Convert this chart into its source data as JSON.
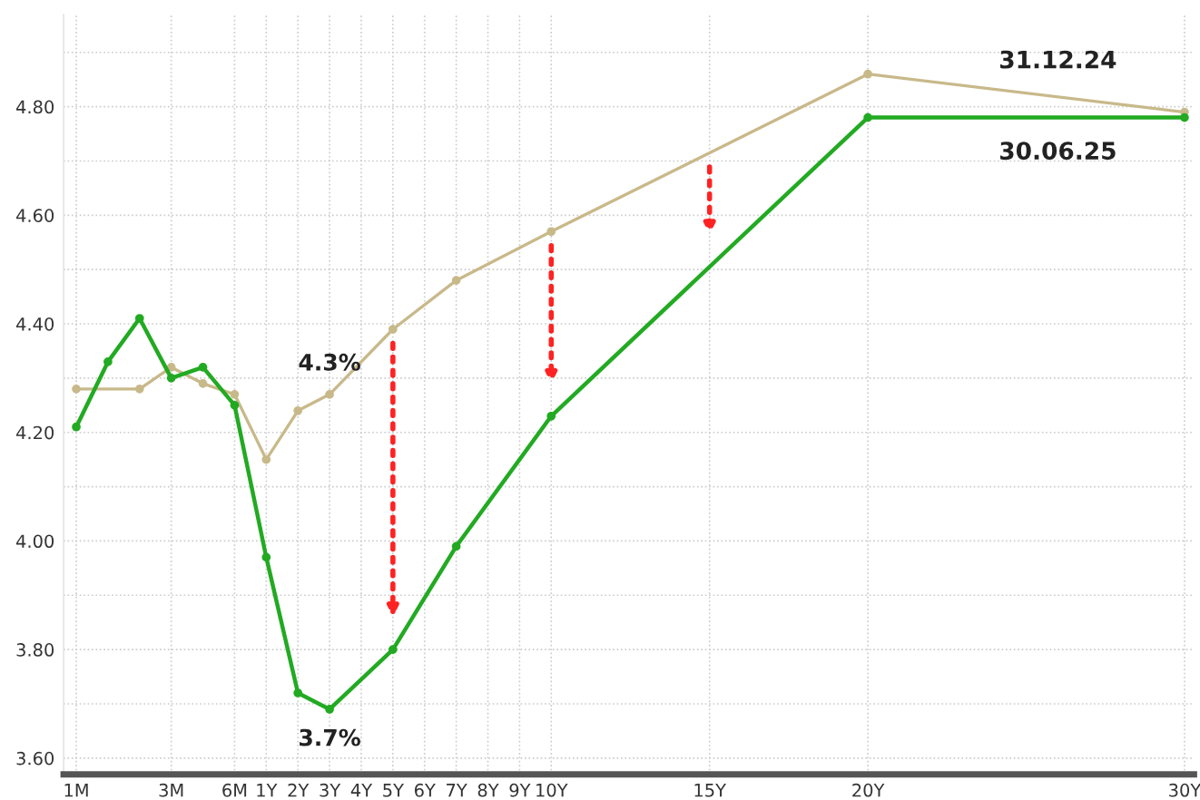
{
  "chart_data": {
    "type": "line",
    "categories": [
      "1M",
      null,
      null,
      "3M",
      null,
      "6M",
      "1Y",
      "2Y",
      "3Y",
      "4Y",
      "5Y",
      "6Y",
      "7Y",
      "8Y",
      "9Y",
      "10Y",
      null,
      null,
      null,
      null,
      "15Y",
      null,
      null,
      null,
      null,
      "20Y",
      null,
      null,
      null,
      null,
      null,
      null,
      null,
      null,
      null,
      "30Y"
    ],
    "ylim": [
      3.57,
      4.97
    ],
    "yticks": [
      {
        "value": 3.6,
        "label": "3.60"
      },
      {
        "value": 3.7,
        "label": null
      },
      {
        "value": 3.8,
        "label": "3.80"
      },
      {
        "value": 3.9,
        "label": null
      },
      {
        "value": 4.0,
        "label": "4.00"
      },
      {
        "value": 4.1,
        "label": null
      },
      {
        "value": 4.2,
        "label": "4.20"
      },
      {
        "value": 4.3,
        "label": null
      },
      {
        "value": 4.4,
        "label": "4.40"
      },
      {
        "value": 4.5,
        "label": null
      },
      {
        "value": 4.6,
        "label": "4.60"
      },
      {
        "value": 4.7,
        "label": null
      },
      {
        "value": 4.8,
        "label": "4.80"
      },
      {
        "value": 4.9,
        "label": null
      }
    ],
    "grid": true,
    "marker": "circle",
    "line_style": "solid",
    "series": [
      {
        "name": "31.12.24",
        "color": "#c8b98a",
        "values": [
          4.28,
          null,
          4.28,
          4.32,
          4.29,
          4.27,
          4.15,
          4.24,
          4.27,
          null,
          4.39,
          null,
          4.48,
          null,
          null,
          4.57,
          null,
          null,
          null,
          null,
          null,
          null,
          null,
          null,
          null,
          4.86,
          null,
          null,
          null,
          null,
          null,
          null,
          null,
          null,
          null,
          4.79
        ]
      },
      {
        "name": "30.06.25",
        "color": "#22aa22",
        "values": [
          4.21,
          4.33,
          4.41,
          4.3,
          4.32,
          4.25,
          3.97,
          3.72,
          3.69,
          null,
          3.8,
          null,
          3.99,
          null,
          null,
          4.23,
          null,
          null,
          null,
          null,
          null,
          null,
          null,
          null,
          null,
          4.78,
          null,
          null,
          null,
          null,
          null,
          null,
          null,
          null,
          null,
          4.78
        ]
      }
    ],
    "annotations": [
      {
        "text": "4.3%",
        "x": "3Y",
        "y": 4.27
      },
      {
        "text": "3.7%",
        "x": "3Y",
        "y": 3.69
      }
    ]
  }
}
